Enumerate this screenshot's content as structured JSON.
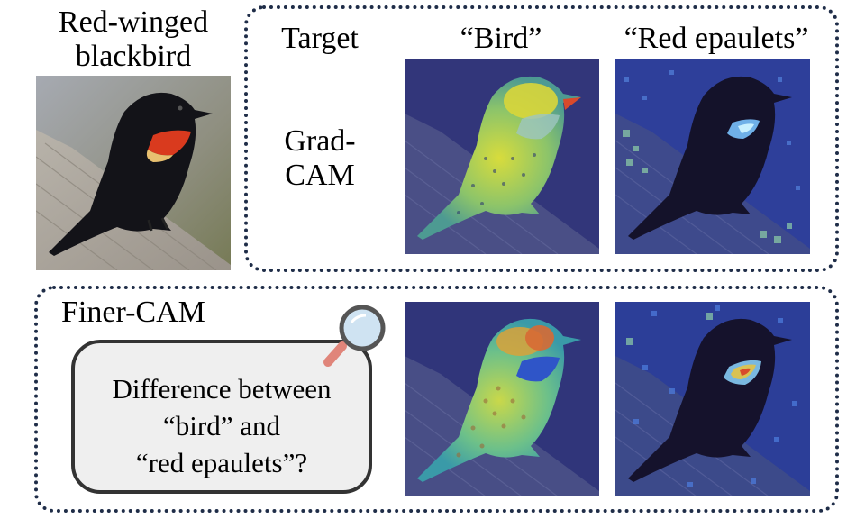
{
  "species": {
    "line1": "Red-winged",
    "line2": "blackbird"
  },
  "top_panel": {
    "target_label": "Target",
    "col_bird": "“Bird”",
    "col_epaulets": "“Red epaulets”",
    "method_line1": "Grad-",
    "method_line2": "CAM"
  },
  "bottom_panel": {
    "method": "Finer-CAM",
    "question_line1": "Difference between",
    "question_line2": "“bird” and",
    "question_line3": "“red epaulets”?",
    "icon": "magnifier-icon"
  },
  "colors": {
    "panel_border": "#1f2d48",
    "bubble_fill": "#efefef",
    "heat_high": "#d94a2b",
    "heat_mid": "#d8d84a",
    "heat_low": "#2a2a8a"
  }
}
